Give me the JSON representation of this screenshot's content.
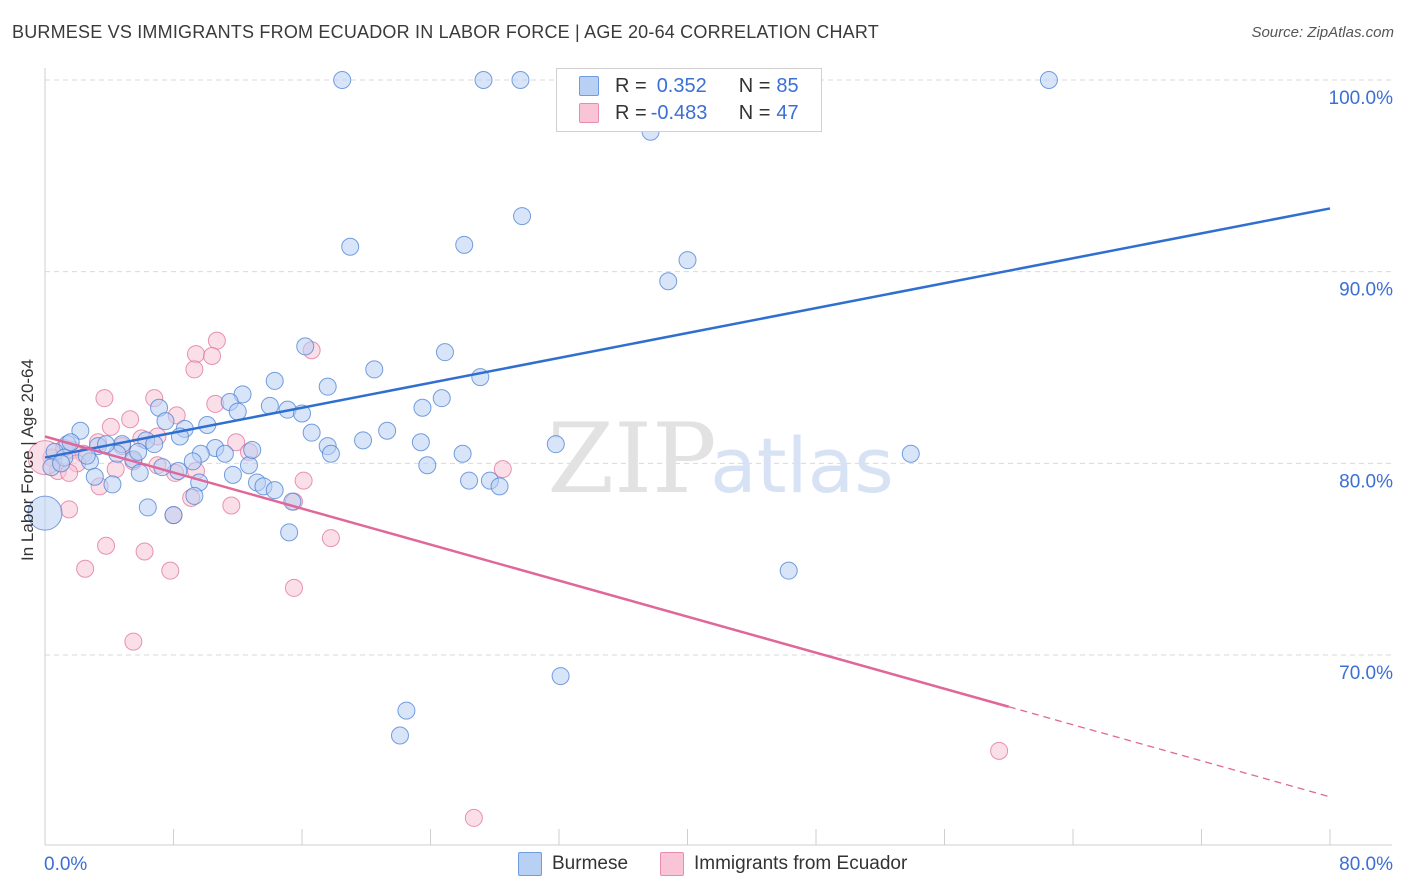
{
  "header": {
    "title": "BURMESE VS IMMIGRANTS FROM ECUADOR IN LABOR FORCE | AGE 20-64 CORRELATION CHART",
    "source": "Source: ZipAtlas.com"
  },
  "watermark": {
    "zip": "ZIP",
    "atlas": "atlas"
  },
  "legend": {
    "r_label": "R =",
    "n_label": "N =",
    "burmese": {
      "r": "0.352",
      "n": "85"
    },
    "ecuador": {
      "r": "-0.483",
      "n": "47"
    }
  },
  "chart_data": {
    "type": "scatter",
    "title": "BURMESE VS IMMIGRANTS FROM ECUADOR IN LABOR FORCE | AGE 20-64 CORRELATION CHART",
    "xlabel": "",
    "ylabel": "In Labor Force | Age 20-64",
    "xlim": [
      0,
      80
    ],
    "ylim": [
      60,
      101
    ],
    "x_tick_labels": [
      "0.0%",
      "80.0%"
    ],
    "y_ticks": [
      70,
      80,
      90,
      100
    ],
    "y_tick_labels": [
      "70.0%",
      "80.0%",
      "90.0%",
      "100.0%"
    ],
    "grid": true,
    "legend_position": "top-center",
    "series": [
      {
        "name": "Burmese",
        "color": "#4a7fd4",
        "fill": "#b8d0f4",
        "r": 0.352,
        "n": 85,
        "trend": {
          "x": [
            0,
            80
          ],
          "y": [
            80.3,
            93.3
          ]
        },
        "points": [
          [
            18.5,
            100.0
          ],
          [
            27.3,
            100.0
          ],
          [
            29.6,
            100.0
          ],
          [
            62.5,
            100.0
          ],
          [
            37.7,
            97.3
          ],
          [
            29.7,
            92.9
          ],
          [
            19.0,
            91.3
          ],
          [
            26.1,
            91.4
          ],
          [
            40.0,
            90.6
          ],
          [
            38.8,
            89.5
          ],
          [
            16.2,
            86.1
          ],
          [
            24.9,
            85.8
          ],
          [
            20.5,
            84.9
          ],
          [
            27.1,
            84.5
          ],
          [
            14.3,
            84.3
          ],
          [
            17.6,
            84.0
          ],
          [
            12.3,
            83.6
          ],
          [
            14.0,
            83.0
          ],
          [
            11.5,
            83.2
          ],
          [
            24.7,
            83.4
          ],
          [
            23.5,
            82.9
          ],
          [
            7.1,
            82.9
          ],
          [
            12.0,
            82.7
          ],
          [
            15.1,
            82.8
          ],
          [
            16.0,
            82.6
          ],
          [
            7.5,
            82.2
          ],
          [
            10.1,
            82.0
          ],
          [
            8.7,
            81.8
          ],
          [
            2.2,
            81.7
          ],
          [
            21.3,
            81.7
          ],
          [
            16.6,
            81.6
          ],
          [
            8.4,
            81.4
          ],
          [
            6.3,
            81.2
          ],
          [
            4.8,
            81.0
          ],
          [
            19.8,
            81.2
          ],
          [
            23.4,
            81.1
          ],
          [
            31.8,
            81.0
          ],
          [
            1.4,
            81.0
          ],
          [
            1.6,
            81.1
          ],
          [
            3.3,
            80.9
          ],
          [
            10.6,
            80.8
          ],
          [
            17.6,
            80.9
          ],
          [
            11.2,
            80.5
          ],
          [
            26.0,
            80.5
          ],
          [
            53.9,
            80.5
          ],
          [
            17.8,
            80.5
          ],
          [
            0.6,
            80.6
          ],
          [
            4.5,
            80.5
          ],
          [
            9.7,
            80.5
          ],
          [
            5.5,
            80.2
          ],
          [
            2.8,
            80.1
          ],
          [
            1.2,
            80.3
          ],
          [
            0.4,
            79.8
          ],
          [
            12.7,
            79.9
          ],
          [
            23.8,
            79.9
          ],
          [
            8.3,
            79.6
          ],
          [
            5.9,
            79.5
          ],
          [
            11.7,
            79.4
          ],
          [
            3.1,
            79.3
          ],
          [
            26.4,
            79.1
          ],
          [
            27.7,
            79.1
          ],
          [
            9.6,
            79.0
          ],
          [
            13.2,
            79.0
          ],
          [
            4.2,
            78.9
          ],
          [
            13.6,
            78.8
          ],
          [
            28.3,
            78.8
          ],
          [
            14.3,
            78.6
          ],
          [
            9.3,
            78.3
          ],
          [
            15.4,
            78.0
          ],
          [
            6.4,
            77.7
          ],
          [
            8.0,
            77.3
          ],
          [
            0.0,
            77.4
          ],
          [
            15.2,
            76.4
          ],
          [
            46.3,
            74.4
          ],
          [
            32.1,
            68.9
          ],
          [
            22.5,
            67.1
          ],
          [
            22.1,
            65.8
          ],
          [
            5.8,
            80.6
          ],
          [
            7.3,
            79.8
          ],
          [
            2.6,
            80.4
          ],
          [
            6.8,
            81.0
          ],
          [
            1.0,
            80.0
          ],
          [
            12.9,
            80.7
          ],
          [
            3.8,
            81.0
          ],
          [
            9.2,
            80.1
          ]
        ]
      },
      {
        "name": "Immigrants from Ecuador",
        "color": "#e0729a",
        "fill": "#f8c4d6",
        "r": -0.483,
        "n": 47,
        "trend": {
          "x": [
            0,
            60
          ],
          "y": [
            81.4,
            67.3
          ],
          "dashed_to": {
            "x": 80,
            "y": 62.6
          }
        },
        "points": [
          [
            10.7,
            86.4
          ],
          [
            9.4,
            85.7
          ],
          [
            10.4,
            85.6
          ],
          [
            16.6,
            85.9
          ],
          [
            9.3,
            84.9
          ],
          [
            3.7,
            83.4
          ],
          [
            6.8,
            83.4
          ],
          [
            10.6,
            83.1
          ],
          [
            8.2,
            82.5
          ],
          [
            5.3,
            82.3
          ],
          [
            4.1,
            81.9
          ],
          [
            7.0,
            81.4
          ],
          [
            6.0,
            81.3
          ],
          [
            11.9,
            81.1
          ],
          [
            3.3,
            81.1
          ],
          [
            4.8,
            80.9
          ],
          [
            1.7,
            80.7
          ],
          [
            2.4,
            80.5
          ],
          [
            12.7,
            80.6
          ],
          [
            0.4,
            80.3
          ],
          [
            5.5,
            80.1
          ],
          [
            2.0,
            80.0
          ],
          [
            7.0,
            79.9
          ],
          [
            28.5,
            79.7
          ],
          [
            0.8,
            79.6
          ],
          [
            1.5,
            79.5
          ],
          [
            8.1,
            79.5
          ],
          [
            9.4,
            79.6
          ],
          [
            16.1,
            79.1
          ],
          [
            3.4,
            78.8
          ],
          [
            15.5,
            78.0
          ],
          [
            9.1,
            78.2
          ],
          [
            11.6,
            77.8
          ],
          [
            1.5,
            77.6
          ],
          [
            8.0,
            77.3
          ],
          [
            17.8,
            76.1
          ],
          [
            3.8,
            75.7
          ],
          [
            6.2,
            75.4
          ],
          [
            2.5,
            74.5
          ],
          [
            7.8,
            74.4
          ],
          [
            15.5,
            73.5
          ],
          [
            5.5,
            70.7
          ],
          [
            59.4,
            65.0
          ],
          [
            26.7,
            61.5
          ],
          [
            0.0,
            80.3
          ],
          [
            1.2,
            80.8
          ],
          [
            4.4,
            79.7
          ]
        ]
      }
    ]
  }
}
